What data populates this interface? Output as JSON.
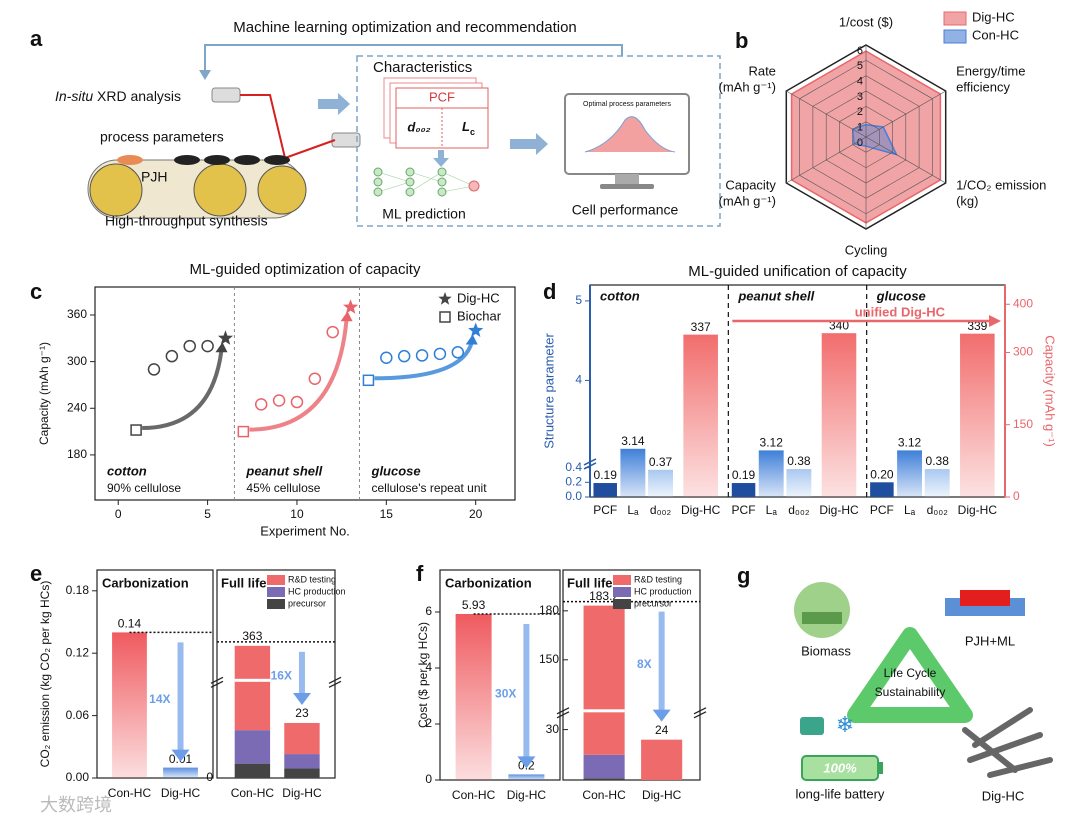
{
  "panel_labels": [
    "a",
    "b",
    "c",
    "d",
    "e",
    "f",
    "g"
  ],
  "diagram_a": {
    "loop_title": "Machine learning optimization and recommendation",
    "xrd": [
      "In-situ",
      " XRD analysis"
    ],
    "process": "process parameters",
    "pjh": "PJH",
    "synthesis": "High-throughput synthesis",
    "characteristics": "Characteristics",
    "pcf": "PCF",
    "d002": "d₀₀₂",
    "lc": [
      "L",
      "c"
    ],
    "ml": "ML prediction",
    "optimal": "Optimal process parameters",
    "cell": "Cell performance"
  },
  "diagram_g": {
    "biomass": "Biomass",
    "pjh_ml": "PJH+ML",
    "cycle": [
      "Life Cycle",
      "Sustainability"
    ],
    "battery_level": "100%",
    "battery": "long-life battery",
    "dig": "Dig-HC"
  },
  "watermark": "大数跨境",
  "chart_data": [
    {
      "type": "radar",
      "axes": [
        [
          "1/cost ($)"
        ],
        [
          "Energy/time",
          "efficiency"
        ],
        [
          "1/CO₂ emission",
          "(kg)"
        ],
        [
          "Cycling"
        ],
        [
          "Capacity",
          "(mAh g⁻¹)"
        ],
        [
          "Rate",
          "(mAh g⁻¹)"
        ]
      ],
      "rlim": [
        0,
        6
      ],
      "rticks": [
        0,
        1,
        2,
        3,
        4,
        5,
        6
      ],
      "series": [
        {
          "name": "Dig-HC",
          "color": "#e8676b",
          "values": [
            5.6,
            5.6,
            5.6,
            5.6,
            5.6,
            5.6
          ]
        },
        {
          "name": "Con-HC",
          "color": "#4a7fd6",
          "values": [
            0.8,
            1.3,
            2.3,
            0.6,
            0.9,
            1.0
          ]
        }
      ],
      "legend": "upper right"
    },
    {
      "type": "scatter",
      "title": "ML-guided optimization of capacity",
      "xlabel": "Experiment No.",
      "ylabel": "Capacity (mAh g⁻¹)",
      "xlim": [
        -1.3,
        22.2
      ],
      "xticks": [
        0,
        5,
        10,
        15,
        20
      ],
      "ylim": [
        122,
        396
      ],
      "yticks": [
        180,
        240,
        300,
        360
      ],
      "series": [
        {
          "name": "Dig-HC",
          "marker": "star",
          "x": [
            6,
            13,
            20
          ],
          "values": [
            330,
            370,
            340
          ],
          "colors": [
            "#444444",
            "#e8646a",
            "#2f7fd6"
          ]
        },
        {
          "name": "Biochar",
          "marker": "square",
          "x": [
            1,
            7,
            14
          ],
          "values": [
            212,
            210,
            276
          ],
          "colors": [
            "#444444",
            "#e8646a",
            "#2f7fd6"
          ]
        },
        {
          "marker": "circle",
          "x": [
            2,
            3,
            4,
            5,
            8,
            9,
            10,
            11,
            12,
            15,
            16,
            17,
            18,
            19
          ],
          "values": [
            290,
            307,
            320,
            320,
            245,
            250,
            248,
            278,
            338,
            305,
            307,
            308,
            310,
            312
          ],
          "colors": [
            "#444444",
            "#444444",
            "#444444",
            "#444444",
            "#e8646a",
            "#e8646a",
            "#e8646a",
            "#e8646a",
            "#e8646a",
            "#2f7fd6",
            "#2f7fd6",
            "#2f7fd6",
            "#2f7fd6",
            "#2f7fd6"
          ]
        }
      ],
      "groups": [
        {
          "name": "cotton",
          "note": "90% cellulose"
        },
        {
          "name": "peanut shell",
          "note": "45% cellulose"
        },
        {
          "name": "glucose",
          "note": "cellulose's repeat unit"
        }
      ],
      "legend": "upper right"
    },
    {
      "type": "bar",
      "title": "ML-guided unification of capacity",
      "ylabel": "Structure parameter",
      "y2label": "Capacity (mAh g⁻¹)",
      "ylim": [
        0,
        5.2
      ],
      "ybreak": [
        0.45,
        3
      ],
      "yticks": [
        {
          "value": 0,
          "label": "0.0"
        },
        0.2,
        0.4,
        4,
        5
      ],
      "y2lim": [
        0,
        440
      ],
      "y2ticks": [
        0,
        150,
        300,
        400
      ],
      "groups": [
        "cotton",
        "peanut shell",
        "glucose"
      ],
      "categories": [
        "PCF",
        "Lₐ",
        "d₀₀₂",
        "Dig-HC"
      ],
      "axes": [
        "y",
        "y",
        "y",
        "y2"
      ],
      "colors": [
        "#1f4e9e",
        "#3f7fd8",
        "#a9c8f0",
        "#f26d6d"
      ],
      "values": [
        [
          0.19,
          3.14,
          0.37,
          337
        ],
        [
          0.19,
          3.12,
          0.38,
          340
        ],
        [
          0.2,
          3.12,
          0.38,
          339
        ]
      ],
      "value_labels": [
        [
          "0.19",
          "3.14",
          "0.37",
          "337"
        ],
        [
          "0.19",
          "3.12",
          "0.38",
          "340"
        ],
        [
          "0.20",
          "3.12",
          "0.38",
          "339"
        ]
      ],
      "annotation": "unified Dig-HC"
    },
    {
      "type": "split-bar",
      "ylabel": "CO₂ emission (kg CO₂ per kg HCs)",
      "left": {
        "title": "Carbonization",
        "categories": [
          "Con-HC",
          "Dig-HC"
        ],
        "values": [
          0.14,
          0.01
        ],
        "colors": [
          "#ef5a5f",
          "#5b8fe0"
        ],
        "ylim": [
          0,
          0.2
        ],
        "yticks": [
          {
            "value": 0,
            "label": "0.00"
          },
          0.06,
          0.12,
          0.18
        ],
        "fold": "14X"
      },
      "right": {
        "title": "Full life",
        "categories": [
          "Con-HC",
          "Dig-HC"
        ],
        "series": [
          {
            "name": "R&D testing",
            "color": "#ef6b6b",
            "values": [
              343,
              13
            ]
          },
          {
            "name": "HC production",
            "color": "#7b6bb5",
            "values": [
              14,
              6
            ]
          },
          {
            "name": "precursor",
            "color": "#444444",
            "values": [
              6,
              4
            ]
          }
        ],
        "totals": [
          363,
          23
        ],
        "ylim": [
          0,
          440
        ],
        "ybreak": [
          40,
          330
        ],
        "yticks": [
          0
        ],
        "fold": "16X"
      }
    },
    {
      "type": "split-bar",
      "ylabel": "Cost ($ per kg HCs)",
      "left": {
        "title": "Carbonization",
        "categories": [
          "Con-HC",
          "Dig-HC"
        ],
        "values": [
          5.93,
          0.2
        ],
        "colors": [
          "#ef5a5f",
          "#5b8fe0"
        ],
        "ylim": [
          0,
          7.5
        ],
        "yticks": [
          0,
          2,
          4,
          6
        ],
        "fold": "30X"
      },
      "right": {
        "title": "Full life",
        "categories": [
          "Con-HC",
          "Dig-HC"
        ],
        "series": [
          {
            "name": "R&D testing",
            "color": "#ef6b6b",
            "values": [
              168.2,
              24
            ]
          },
          {
            "name": "HC production",
            "color": "#7b6bb5",
            "values": [
              14,
              0
            ]
          },
          {
            "name": "precursor",
            "color": "#444444",
            "values": [
              1,
              0
            ]
          }
        ],
        "totals": [
          183.2,
          24
        ],
        "ylim": [
          0,
          205
        ],
        "ybreak": [
          40,
          120
        ],
        "yticks": [
          30,
          150,
          180
        ],
        "fold": "8X"
      }
    }
  ]
}
